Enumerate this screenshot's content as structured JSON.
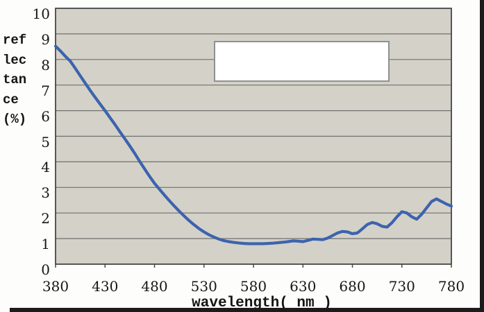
{
  "chart_data": {
    "type": "line",
    "title": "",
    "xlabel": "wavelength( nm )",
    "ylabel": "reflectance (%)",
    "ylabel_lines": [
      "ref",
      "lec",
      "tan",
      "ce",
      "(%)"
    ],
    "x_ticks": [
      380,
      430,
      480,
      530,
      580,
      630,
      680,
      730,
      780
    ],
    "y_ticks": [
      0,
      1,
      2,
      3,
      4,
      5,
      6,
      7,
      8,
      9,
      10
    ],
    "xlim": [
      380,
      780
    ],
    "ylim": [
      0,
      10
    ],
    "grid": "horizontal-only",
    "legend_box": {
      "visible": true,
      "text": ""
    },
    "plot_bg_color": "#d4d1c8",
    "gridline_color": "#6f6f6d",
    "axis_frame_color": "#46464a",
    "scan_border_color": "#1b1b1b",
    "series": [
      {
        "name": "reflectance",
        "color": "#3c63ad",
        "x": [
          380,
          385,
          390,
          395,
          400,
          405,
          410,
          415,
          420,
          425,
          430,
          435,
          440,
          445,
          450,
          455,
          460,
          465,
          470,
          475,
          480,
          485,
          490,
          495,
          500,
          505,
          510,
          515,
          520,
          525,
          530,
          535,
          540,
          545,
          550,
          555,
          560,
          565,
          570,
          575,
          580,
          585,
          590,
          595,
          600,
          605,
          610,
          615,
          620,
          625,
          630,
          635,
          640,
          645,
          650,
          655,
          660,
          665,
          670,
          675,
          680,
          685,
          690,
          695,
          700,
          705,
          710,
          715,
          720,
          725,
          730,
          735,
          740,
          745,
          750,
          755,
          760,
          765,
          770,
          775,
          780
        ],
        "values": [
          8.52,
          8.33,
          8.12,
          7.93,
          7.65,
          7.36,
          7.07,
          6.79,
          6.52,
          6.26,
          6.0,
          5.73,
          5.46,
          5.18,
          4.9,
          4.62,
          4.33,
          4.02,
          3.72,
          3.43,
          3.16,
          2.93,
          2.7,
          2.48,
          2.27,
          2.07,
          1.88,
          1.7,
          1.54,
          1.39,
          1.26,
          1.15,
          1.06,
          0.98,
          0.92,
          0.88,
          0.85,
          0.83,
          0.81,
          0.8,
          0.8,
          0.8,
          0.8,
          0.81,
          0.82,
          0.84,
          0.86,
          0.88,
          0.91,
          0.9,
          0.88,
          0.93,
          0.98,
          0.97,
          0.96,
          1.02,
          1.12,
          1.22,
          1.28,
          1.26,
          1.19,
          1.22,
          1.38,
          1.55,
          1.63,
          1.58,
          1.48,
          1.45,
          1.62,
          1.85,
          2.05,
          2.0,
          1.85,
          1.76,
          1.95,
          2.2,
          2.45,
          2.55,
          2.45,
          2.35,
          2.27
        ]
      }
    ]
  }
}
